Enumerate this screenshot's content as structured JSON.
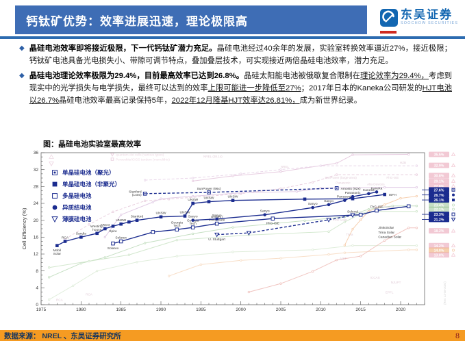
{
  "header": {
    "title": "钙钛矿优势：效率进展迅速，理论极限高",
    "logo": {
      "cn": "东吴证券",
      "en": "SOOCHOW SECURITIES"
    }
  },
  "bullets": [
    {
      "segments": [
        {
          "t": "晶硅电池效率即将接近极限，下一代钙钛矿潜力充足。",
          "b": true
        },
        {
          "t": "晶硅电池经过40余年的发展，实验室转换效率逼近27%，接近极限；钙钛矿电池具备光电损失小、带隙可调节特点，叠加叠层技术，可实现接近两倍晶硅电池效率，潜力充足。"
        }
      ]
    },
    {
      "segments": [
        {
          "t": "晶硅电池理论效率极限为29.4%，目前最高效率已达到26.8%。",
          "b": true
        },
        {
          "t": "晶硅太阳能电池被俄歇复合限制在"
        },
        {
          "t": "理论效率为29.4%，",
          "u": true
        },
        {
          "t": "考虑到现实中的光学损失与电学损失，最终可以达到的效率"
        },
        {
          "t": "上限可能进一步降低至27%",
          "u": true
        },
        {
          "t": "；2017年日本的Kaneka公司研发的"
        },
        {
          "t": "HJT电池以26.7%",
          "u": true
        },
        {
          "t": "晶硅电池效率最高记录保持5年，"
        },
        {
          "t": "2022年12月隆基HJT效率达26.81%，",
          "u": true
        },
        {
          "t": "成为新世界纪录。"
        }
      ]
    }
  ],
  "figure_title": "图：晶硅电池实验室最高效率",
  "chart_data": {
    "type": "line",
    "title": "图：晶硅电池实验室最高效率",
    "xlabel": "",
    "ylabel": "Cell Efficiency (%)",
    "xlim": [
      1975,
      2023
    ],
    "ylim": [
      0,
      36
    ],
    "x_ticks": [
      1975,
      1980,
      1985,
      1990,
      1995,
      2000,
      2005,
      2010,
      2015,
      2020
    ],
    "y_ticks": [
      0,
      4,
      8,
      12,
      16,
      20,
      24,
      28,
      32,
      36
    ],
    "grid": false,
    "legend_position": "upper-left",
    "accent": "#1b2c8f",
    "legend": [
      {
        "label": "单晶硅电池（聚光）",
        "marker": "square-dot"
      },
      {
        "label": "单晶硅电池（非聚光）",
        "marker": "square"
      },
      {
        "label": "多晶硅电池",
        "marker": "square-open"
      },
      {
        "label": "异质结电池",
        "marker": "circle"
      },
      {
        "label": "薄膜硅电池",
        "marker": "tri-down"
      }
    ],
    "faded_legend": [
      {
        "label": "quantum dot cells (various types)",
        "marker": "tri-down"
      },
      {
        "label": "Perovskite/CIGS tandem (monolithic)",
        "marker": "square-open"
      }
    ],
    "series": [
      {
        "name": "单晶硅电池（聚光）",
        "marker": "square-dot",
        "line": "dashed",
        "badge": "27.6%",
        "points": [
          {
            "x": 1988,
            "y": 26.3,
            "label": "Stanford\n(140x)",
            "lp": "l"
          },
          {
            "x": 1996,
            "y": 26.6,
            "label": "SunPower (96x)",
            "lp": "a"
          },
          {
            "x": 2012,
            "y": 27.6,
            "label": "Amonix (92x)",
            "lp": "r"
          }
        ]
      },
      {
        "name": "单晶硅电池（非聚光）",
        "marker": "square",
        "line": "solid",
        "badge": "26.1%",
        "points": [
          {
            "x": 1977,
            "y": 14.0,
            "label": "Mobil\nSolar",
            "lp": "b"
          },
          {
            "x": 1978,
            "y": 15.0,
            "label": "RCA",
            "lp": "a"
          },
          {
            "x": 1980,
            "y": 16.0,
            "label": "Sandia",
            "lp": "a"
          },
          {
            "x": 1982,
            "y": 16.9,
            "label": "Westing-\nhouse",
            "lp": "a"
          },
          {
            "x": 1983,
            "y": 18.0,
            "label": "ARCO",
            "lp": "a"
          },
          {
            "x": 1984,
            "y": 18.6,
            "label": "Spire",
            "lp": "b"
          },
          {
            "x": 1985,
            "y": 19.1,
            "label": "UNSW",
            "lp": "a"
          },
          {
            "x": 1986,
            "y": 19.6
          },
          {
            "x": 1987,
            "y": 20.0,
            "label": "Stanford",
            "lp": "a"
          },
          {
            "x": 1990,
            "y": 20.8,
            "label": "UNSW",
            "lp": "a"
          },
          {
            "x": 1993,
            "y": 21.0,
            "label": "UNSW",
            "lp": "a"
          },
          {
            "x": 1994,
            "y": 24.0,
            "label": "UNSW",
            "lp": "a"
          },
          {
            "x": 1996,
            "y": 24.4,
            "label": "UNSW",
            "lp": "a"
          },
          {
            "x": 1999,
            "y": 24.7,
            "label": "UNSW",
            "lp": "a"
          },
          {
            "x": 2008,
            "y": 25.0
          },
          {
            "x": 2014,
            "y": 25.1
          },
          {
            "x": 2018,
            "y": 26.1,
            "label": "ISFH",
            "lp": "r"
          }
        ]
      },
      {
        "name": "多晶硅电池",
        "marker": "square-open",
        "line": "solid",
        "badge": "23.3%",
        "points": [
          {
            "x": 1984,
            "y": 14.5,
            "label": "Solarex",
            "lp": "b"
          },
          {
            "x": 1985,
            "y": 15.0,
            "label": "Solarex",
            "lp": "a"
          },
          {
            "x": 1989,
            "y": 17.2
          },
          {
            "x": 1992,
            "y": 17.8,
            "label": "Georgia\nTech",
            "lp": "a"
          },
          {
            "x": 1994,
            "y": 18.3,
            "label": "Georgia\nTech",
            "lp": "a"
          },
          {
            "x": 1997,
            "y": 19.2,
            "label": "UNSW /\nEurosolare",
            "lp": "a"
          },
          {
            "x": 2004,
            "y": 20.4,
            "label": "FhG-ISE",
            "lp": "b"
          },
          {
            "x": 2015,
            "y": 21.3
          },
          {
            "x": 2017,
            "y": 22.3,
            "label": "FhG-ISE",
            "lp": "a"
          },
          {
            "x": 2021,
            "y": 23.3
          }
        ]
      },
      {
        "name": "异质结电池",
        "marker": "circle",
        "line": "solid",
        "badge": "26.7%",
        "points": [
          {
            "x": 1994,
            "y": 20.0,
            "label": "Sanyo",
            "lp": "a"
          },
          {
            "x": 1997,
            "y": 20.3,
            "label": "Sanyo",
            "lp": "a"
          },
          {
            "x": 2003,
            "y": 21.3,
            "label": "Sanyo",
            "lp": "a"
          },
          {
            "x": 2009,
            "y": 23.0,
            "label": "Sanyo",
            "lp": "a"
          },
          {
            "x": 2011,
            "y": 23.7,
            "label": "Sanyo",
            "lp": "a"
          },
          {
            "x": 2013,
            "y": 24.7,
            "label": "Panasonic",
            "lp": "a"
          },
          {
            "x": 2014,
            "y": 25.6,
            "label": "Panasonic",
            "lp": "a"
          },
          {
            "x": 2016,
            "y": 26.3,
            "label": "Kaneka",
            "lp": "a"
          },
          {
            "x": 2017,
            "y": 26.7,
            "label": "Kaneka",
            "lp": "a"
          }
        ]
      },
      {
        "name": "薄膜硅电池",
        "marker": "tri-down",
        "line": "dashed",
        "badge": "21.2%",
        "points": [
          {
            "x": 1997,
            "y": 16.6,
            "label": "U. Stuttgart",
            "lp": "b"
          },
          {
            "x": 2001,
            "y": 17.0
          },
          {
            "x": 2011,
            "y": 20.1
          },
          {
            "x": 2014,
            "y": 21.2,
            "label": "Solexel",
            "lp": "a"
          }
        ]
      }
    ],
    "extra_labels": [
      {
        "x": 2017.2,
        "y": 18.0,
        "text": "JinkoSolar"
      },
      {
        "x": 2017.2,
        "y": 16.9,
        "text": "Trina Solar"
      },
      {
        "x": 2017.2,
        "y": 15.8,
        "text": "Canadian Solar"
      }
    ],
    "background_series": [
      {
        "color": "#d4a3c8",
        "line": "solid",
        "points": [
          [
            1994,
            29.3
          ],
          [
            1999,
            30.5
          ],
          [
            2005,
            31.5
          ],
          [
            2012,
            33.5
          ],
          [
            2014,
            35.5
          ],
          [
            2021,
            35.6
          ]
        ]
      },
      {
        "color": "#d8b6d8",
        "line": "dashed",
        "points": [
          [
            1988,
            29.5
          ],
          [
            1994,
            30.0
          ],
          [
            2000,
            31.0
          ],
          [
            2005,
            32.0
          ],
          [
            2010,
            32.9
          ],
          [
            2022,
            32.9
          ]
        ]
      },
      {
        "color": "#d8a8c4",
        "line": "dashed",
        "points": [
          [
            1978,
            15.5
          ],
          [
            1981,
            19.0
          ],
          [
            1984,
            22.0
          ],
          [
            1988,
            24.6
          ],
          [
            1991,
            25.0
          ],
          [
            2000,
            26.3
          ],
          [
            2005,
            27.5
          ],
          [
            2009,
            29.0
          ],
          [
            2012,
            30.8
          ],
          [
            2022,
            30.8
          ]
        ]
      },
      {
        "color": "#c9a3d0",
        "line": "solid",
        "points": [
          [
            1983,
            16.0
          ],
          [
            1985,
            21.3
          ],
          [
            1989,
            24.3
          ],
          [
            1990,
            25.1
          ],
          [
            1994,
            25.7
          ],
          [
            2000,
            26.5
          ],
          [
            2007,
            26.8
          ],
          [
            2010,
            27.6
          ],
          [
            2018,
            27.8
          ],
          [
            2022,
            27.8
          ]
        ]
      },
      {
        "color": "#96c591",
        "line": "solid",
        "points": [
          [
            1976,
            6.5
          ],
          [
            1980,
            9.8
          ],
          [
            1983,
            11.2
          ],
          [
            1988,
            14.6
          ],
          [
            1994,
            16.8
          ],
          [
            1999,
            18.3
          ],
          [
            2008,
            19.9
          ],
          [
            2013,
            20.8
          ],
          [
            2016,
            22.6
          ],
          [
            2019,
            23.4
          ],
          [
            2022,
            23.4
          ]
        ]
      },
      {
        "color": "#aed4a6",
        "line": "solid",
        "points": [
          [
            1976,
            8.8
          ],
          [
            1981,
            10.3
          ],
          [
            1986,
            11.8
          ],
          [
            1992,
            15.3
          ],
          [
            2001,
            16.5
          ],
          [
            2011,
            17.3
          ],
          [
            2013,
            19.6
          ],
          [
            2015,
            21.5
          ],
          [
            2016,
            22.1
          ],
          [
            2022,
            22.1
          ]
        ]
      },
      {
        "color": "#c7e0bf",
        "line": "solid",
        "points": [
          [
            1976,
            1.2
          ],
          [
            1979,
            4.5
          ],
          [
            1982,
            8.0
          ],
          [
            1987,
            10.1
          ],
          [
            1992,
            11.5
          ],
          [
            1999,
            12.5
          ],
          [
            2009,
            13.0
          ],
          [
            2014,
            14.0
          ],
          [
            2022,
            14.0
          ]
        ]
      },
      {
        "color": "#f3c49a",
        "line": "solid",
        "points": [
          [
            1991,
            6.8
          ],
          [
            1995,
            9.5
          ],
          [
            2000,
            10.5
          ],
          [
            2005,
            11.0
          ],
          [
            2011,
            11.9
          ],
          [
            2013,
            12.3
          ],
          [
            2021,
            13.0
          ],
          [
            2022,
            13.0
          ]
        ]
      },
      {
        "color": "#e5958d",
        "line": "solid",
        "points": [
          [
            2001,
            3.0
          ],
          [
            2005,
            5.0
          ],
          [
            2009,
            7.9
          ],
          [
            2012,
            10.6
          ],
          [
            2015,
            11.5
          ],
          [
            2018,
            15.2
          ],
          [
            2021,
            18.2
          ],
          [
            2022,
            18.2
          ]
        ]
      },
      {
        "color": "#f0a86e",
        "line": "solid",
        "points": [
          [
            2013,
            14.1
          ],
          [
            2014,
            17.9
          ],
          [
            2015,
            20.1
          ],
          [
            2016,
            22.1
          ],
          [
            2018,
            23.7
          ],
          [
            2020,
            25.2
          ],
          [
            2022,
            25.7
          ]
        ]
      }
    ],
    "faded_labels": [
      {
        "x": 1996.5,
        "y": 34.9,
        "text": "NREL (38.1x)"
      },
      {
        "x": 2005.5,
        "y": 32.4,
        "text": "NREL"
      },
      {
        "x": 2020.3,
        "y": 33.4,
        "text": "HZB"
      },
      {
        "x": 2012.5,
        "y": 29.8,
        "text": "SunPower (large-area)"
      },
      {
        "x": 2012.8,
        "y": 28.6,
        "text": "Panasonic"
      },
      {
        "x": 2019.0,
        "y": 29.8,
        "text": "FhG-ISE"
      },
      {
        "x": 2016.9,
        "y": 28.3,
        "text": "Alta Devices"
      },
      {
        "x": 2018.0,
        "y": 22.9,
        "text": "Solar Frontier"
      },
      {
        "x": 2012.4,
        "y": 19.9,
        "text": "First Solar"
      },
      {
        "x": 2013.6,
        "y": 16.4,
        "text": "Trina"
      },
      {
        "x": 2012.8,
        "y": 10.7,
        "text": "AIST"
      },
      {
        "x": 2016.8,
        "y": 6.2,
        "text": "ICCAS"
      },
      {
        "x": 2019.4,
        "y": 5.0,
        "text": "NJUPT"
      },
      {
        "x": 2018.6,
        "y": 2.7,
        "text": "EPFL"
      },
      {
        "x": 1977.3,
        "y": 0.9,
        "text": "RCA"
      },
      {
        "x": 1981.0,
        "y": 2.2,
        "text": "RCA"
      }
    ],
    "right_badges": [
      {
        "text": "35.5%",
        "style": "pink",
        "marker": "tri",
        "v": 35.6
      },
      {
        "text": "32.9%",
        "style": "pink",
        "marker": "tri",
        "v": 33.0
      },
      {
        "text": "30.8%",
        "style": "pink",
        "marker": "tri",
        "v": 30.6
      },
      {
        "text": "29.1%",
        "style": "pink",
        "marker": "tri",
        "v": 29.3
      },
      {
        "text": "27.8%",
        "style": "pink",
        "marker": "tri",
        "v": 28.1
      },
      {
        "text": "27.6%",
        "style": "navy",
        "marker": "square-dot",
        "v": 27.2
      },
      {
        "text": "26.7%",
        "style": "navy",
        "marker": "circle",
        "v": 26.0
      },
      {
        "text": "26.1%",
        "style": "navy",
        "marker": "square",
        "v": 24.8
      },
      {
        "text": "23.4%",
        "style": "green",
        "marker": "circle-open",
        "v": 23.6
      },
      {
        "text": "22.1%",
        "style": "green",
        "marker": "circle-open",
        "v": 22.6
      },
      {
        "text": "23.3%",
        "style": "navy",
        "marker": "square-open",
        "v": 21.4
      },
      {
        "text": "21.2%",
        "style": "navy",
        "marker": "tri-down",
        "v": 20.2
      },
      {
        "text": "18.2%",
        "style": "pink",
        "marker": "tri",
        "v": 17.5
      },
      {
        "text": "14.2%",
        "style": "pink",
        "marker": "tri",
        "v": 14.0
      },
      {
        "text": "14.0%",
        "style": "orange",
        "marker": "circle-open",
        "v": 12.9
      },
      {
        "text": "13.0%",
        "style": "pink",
        "marker": "tri",
        "v": 11.8
      }
    ],
    "badge_colors": {
      "navy": "#1b2c8f",
      "pink": "#e795ab",
      "green": "#8fbf8a",
      "orange": "#eda05f"
    },
    "rev_note": "(Rev. 12-08-2022)"
  },
  "footer": {
    "source": "数据来源： NREL 、东吴证券研究所",
    "page": "8"
  }
}
